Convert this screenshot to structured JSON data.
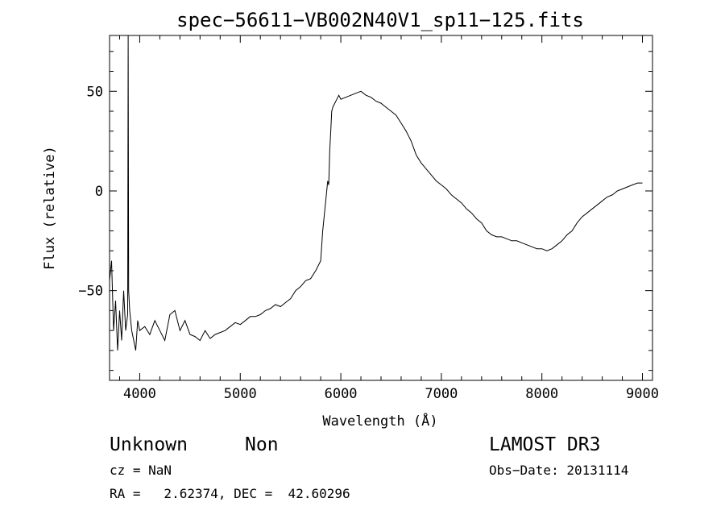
{
  "chart_data": {
    "type": "line",
    "title": "spec−56611−VB002N40V1_sp11−125.fits",
    "xlabel": "Wavelength (Å)",
    "ylabel": "Flux (relative)",
    "xlim": [
      3700,
      9100
    ],
    "ylim": [
      -95,
      78
    ],
    "x_ticks": [
      4000,
      5000,
      6000,
      7000,
      8000,
      9000
    ],
    "x_tick_labels": [
      "4000",
      "5000",
      "6000",
      "7000",
      "8000",
      "9000"
    ],
    "y_ticks": [
      -50,
      0,
      50
    ],
    "y_tick_labels": [
      "−50",
      "0",
      "50"
    ],
    "grid": false,
    "legend": "none",
    "series": [
      {
        "color": "#000000",
        "x": [
          3700,
          3720,
          3740,
          3760,
          3780,
          3800,
          3820,
          3840,
          3860,
          3880,
          3885,
          3890,
          3900,
          3920,
          3940,
          3960,
          3980,
          4000,
          4050,
          4100,
          4150,
          4200,
          4250,
          4300,
          4350,
          4400,
          4450,
          4500,
          4550,
          4600,
          4650,
          4700,
          4750,
          4800,
          4850,
          4900,
          4950,
          5000,
          5050,
          5100,
          5150,
          5200,
          5250,
          5300,
          5350,
          5400,
          5450,
          5500,
          5550,
          5600,
          5650,
          5700,
          5750,
          5800,
          5820,
          5840,
          5860,
          5870,
          5880,
          5890,
          5900,
          5910,
          5920,
          5940,
          5960,
          5980,
          6000,
          6050,
          6100,
          6150,
          6200,
          6250,
          6300,
          6350,
          6400,
          6450,
          6500,
          6550,
          6600,
          6650,
          6700,
          6750,
          6800,
          6850,
          6900,
          6950,
          7000,
          7050,
          7100,
          7150,
          7200,
          7250,
          7300,
          7350,
          7400,
          7450,
          7500,
          7550,
          7600,
          7650,
          7700,
          7750,
          7800,
          7850,
          7900,
          7950,
          8000,
          8050,
          8100,
          8150,
          8200,
          8250,
          8300,
          8350,
          8400,
          8450,
          8500,
          8550,
          8600,
          8650,
          8700,
          8750,
          8800,
          8850,
          8900,
          8950,
          9000
        ],
        "y": [
          -45,
          -35,
          -70,
          -55,
          -80,
          -60,
          -75,
          -50,
          -70,
          -62,
          78,
          -50,
          -60,
          -70,
          -75,
          -80,
          -65,
          -70,
          -68,
          -72,
          -65,
          -70,
          -75,
          -62,
          -60,
          -70,
          -65,
          -72,
          -73,
          -75,
          -70,
          -74,
          -72,
          -71,
          -70,
          -68,
          -66,
          -67,
          -65,
          -63,
          -63,
          -62,
          -60,
          -59,
          -57,
          -58,
          -56,
          -54,
          -50,
          -48,
          -45,
          -44,
          -40,
          -35,
          -20,
          -10,
          0,
          5,
          3,
          20,
          30,
          40,
          42,
          44,
          46,
          48,
          46,
          47,
          48,
          49,
          50,
          48,
          47,
          45,
          44,
          42,
          40,
          38,
          34,
          30,
          25,
          18,
          14,
          11,
          8,
          5,
          3,
          1,
          -2,
          -4,
          -6,
          -9,
          -11,
          -14,
          -16,
          -20,
          -22,
          -23,
          -23,
          -24,
          -25,
          -25,
          -26,
          -27,
          -28,
          -29,
          -29,
          -30,
          -29,
          -27,
          -25,
          -22,
          -20,
          -16,
          -13,
          -11,
          -9,
          -7,
          -5,
          -3,
          -2,
          0,
          1,
          2,
          3,
          4,
          4
        ]
      }
    ]
  },
  "annotations": {
    "object_class": "Unknown",
    "object_subclass": "Non",
    "survey": "LAMOST DR3",
    "redshift": "cz = NaN",
    "obs_date": "Obs−Date: 20131114",
    "coords": "RA =   2.62374, DEC =  42.60296"
  }
}
